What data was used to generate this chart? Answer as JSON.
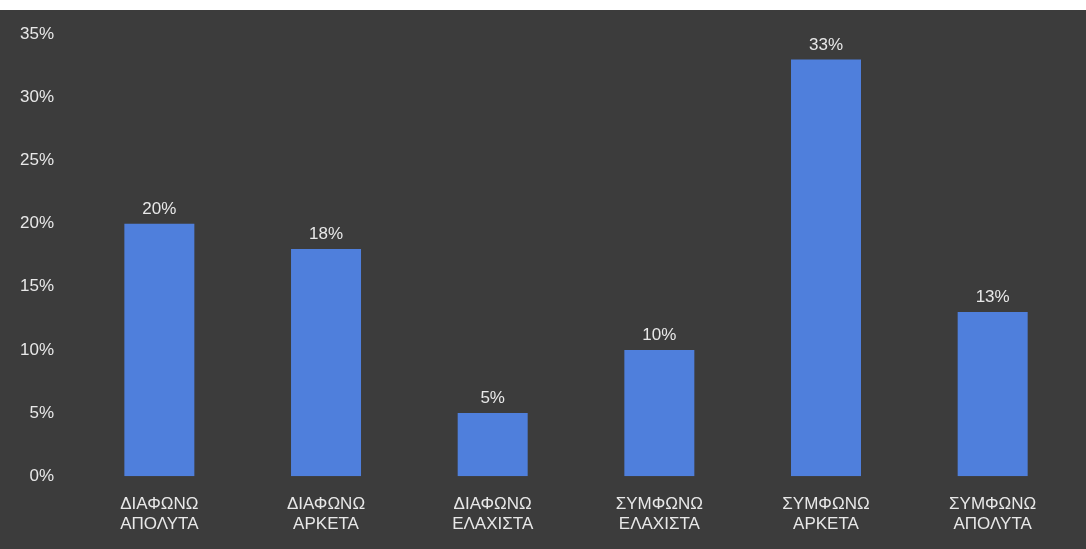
{
  "chart_data": {
    "type": "bar",
    "categories": [
      "ΔΙΑΦΩΝΩ ΑΠΟΛΥΤΑ",
      "ΔΙΑΦΩΝΩ ΑΡΚΕΤΑ",
      "ΔΙΑΦΩΝΩ ΕΛΑΧΙΣΤΑ",
      "ΣΥΜΦΩΝΩ ΕΛΑΧΙΣΤΑ",
      "ΣΥΜΦΩΝΩ ΑΡΚΕΤΑ",
      "ΣΥΜΦΩΝΩ ΑΠΟΛΥΤΑ"
    ],
    "values": [
      20,
      18,
      5,
      10,
      33,
      13
    ],
    "value_labels": [
      "20%",
      "18%",
      "5%",
      "10%",
      "33%",
      "13%"
    ],
    "color": "#4f7fdc",
    "ylim": [
      0,
      35
    ],
    "yticks": [
      {
        "value": 0,
        "label": "0%"
      },
      {
        "value": 5,
        "label": "5%"
      },
      {
        "value": 10,
        "label": "10%"
      },
      {
        "value": 15,
        "label": "15%"
      },
      {
        "value": 20,
        "label": "20%"
      },
      {
        "value": 25,
        "label": "25%"
      },
      {
        "value": 30,
        "label": "30%"
      },
      {
        "value": 35,
        "label": "35%"
      }
    ]
  }
}
